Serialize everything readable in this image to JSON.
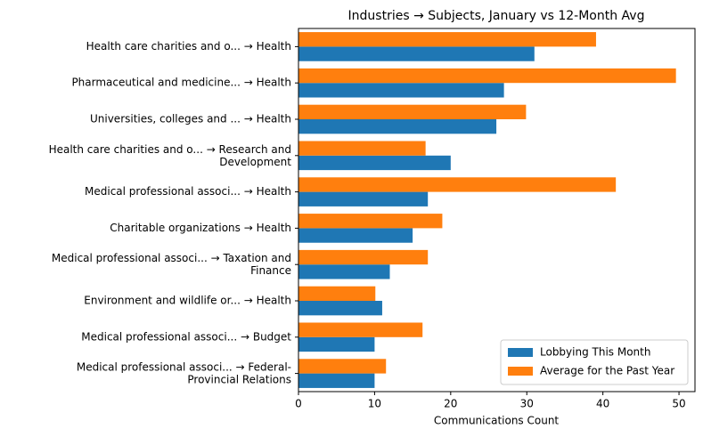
{
  "chart_data": {
    "type": "barh",
    "title": "Industries → Subjects, January vs 12-Month Avg",
    "xlabel": "Communications Count",
    "categories": [
      "Health care charities and o... → Health",
      "Pharmaceutical and medicine... → Health",
      "Universities, colleges and ... → Health",
      "Health care charities and o... → Research and\nDevelopment",
      "Medical professional associ... → Health",
      "Charitable organizations → Health",
      "Medical professional associ... → Taxation and\nFinance",
      "Environment and wildlife or... → Health",
      "Medical professional associ... → Budget",
      "Medical professional associ... → Federal-\nProvincial Relations"
    ],
    "series": [
      {
        "name": "Lobbying This Month",
        "color": "#1f77b4",
        "values": [
          31,
          27,
          26,
          20,
          17,
          15,
          12,
          11,
          10,
          10
        ]
      },
      {
        "name": "Average for the Past Year",
        "color": "#ff7f0e",
        "values": [
          39.1,
          49.6,
          29.9,
          16.7,
          41.7,
          18.9,
          17,
          10.1,
          16.3,
          11.5
        ]
      }
    ],
    "xlim": [
      0,
      52.1
    ],
    "xticks": [
      0,
      10,
      20,
      30,
      40,
      50
    ],
    "legend": "lower right"
  }
}
